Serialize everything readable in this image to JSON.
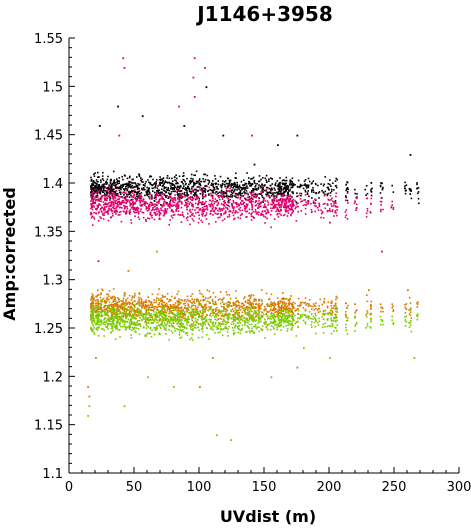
{
  "chart_data": {
    "type": "scatter",
    "title": "J1146+3958",
    "xlabel": "UVdist (m)",
    "ylabel": "Amp:corrected",
    "xlim": [
      0,
      300
    ],
    "ylim": [
      1.1,
      1.55
    ],
    "x_ticks": [
      "0",
      "50",
      "100",
      "150",
      "200",
      "250",
      "300"
    ],
    "y_ticks": [
      "1.1",
      "1.15",
      "1.2",
      "1.25",
      "1.3",
      "1.35",
      "1.4",
      "1.45",
      "1.5",
      "1.55"
    ],
    "grid": false,
    "legend": "none",
    "series": [
      {
        "color": "#000000",
        "band": {
          "x_range": [
            14,
            270
          ],
          "y_center": 1.395,
          "y_spread": 0.012
        },
        "points": [
          [
            37,
            1.48
          ],
          [
            56,
            1.47
          ],
          [
            88,
            1.46
          ],
          [
            105,
            1.5
          ],
          [
            118,
            1.45
          ],
          [
            160,
            1.44
          ],
          [
            175,
            1.45
          ],
          [
            262,
            1.43
          ],
          [
            23,
            1.46
          ],
          [
            142,
            1.42
          ]
        ]
      },
      {
        "color": "#e0006c",
        "band": {
          "x_range": [
            14,
            255
          ],
          "y_center": 1.378,
          "y_spread": 0.014
        },
        "points": [
          [
            41,
            1.53
          ],
          [
            42,
            1.52
          ],
          [
            96,
            1.53
          ],
          [
            104,
            1.52
          ],
          [
            96,
            1.49
          ],
          [
            84,
            1.48
          ],
          [
            95,
            1.51
          ],
          [
            38,
            1.45
          ],
          [
            140,
            1.45
          ],
          [
            200,
            1.36
          ],
          [
            240,
            1.33
          ],
          [
            22,
            1.32
          ]
        ]
      },
      {
        "color": "#d97a00",
        "band": {
          "x_range": [
            14,
            270
          ],
          "y_center": 1.272,
          "y_spread": 0.013
        },
        "points": [
          [
            14,
            1.19
          ],
          [
            15,
            1.18
          ],
          [
            100,
            1.19
          ],
          [
            110,
            1.22
          ],
          [
            175,
            1.21
          ],
          [
            45,
            1.31
          ],
          [
            67,
            1.33
          ],
          [
            230,
            1.29
          ],
          [
            260,
            1.29
          ],
          [
            20,
            1.22
          ]
        ]
      },
      {
        "color": "#7acc00",
        "band": {
          "x_range": [
            14,
            270
          ],
          "y_center": 1.259,
          "y_spread": 0.014
        },
        "points": [
          [
            14,
            1.16
          ],
          [
            15,
            1.17
          ],
          [
            42,
            1.17
          ],
          [
            113,
            1.14
          ],
          [
            124,
            1.135
          ],
          [
            60,
            1.2
          ],
          [
            80,
            1.19
          ],
          [
            155,
            1.2
          ],
          [
            200,
            1.22
          ],
          [
            265,
            1.22
          ],
          [
            180,
            1.23
          ]
        ]
      }
    ]
  }
}
